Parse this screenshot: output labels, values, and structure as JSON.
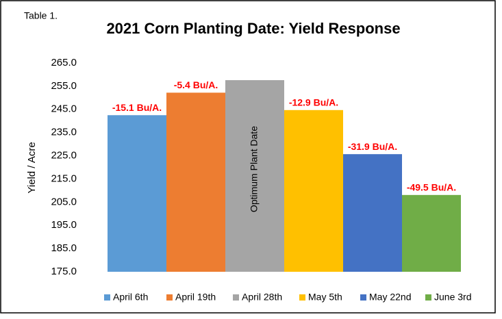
{
  "chart_data": {
    "type": "bar",
    "caption": "Table 1.",
    "title": "2021 Corn Planting Date: Yield Response",
    "y_label": "Yield / Acre",
    "series": [
      {
        "name": "April 6th",
        "color": "#5b9bd5",
        "values": [
          242.5
        ]
      },
      {
        "name": "April 19th",
        "color": "#ed7d31",
        "values": [
          252.2
        ]
      },
      {
        "name": "April 28th",
        "color": "#a5a5a5",
        "values": [
          257.6
        ]
      },
      {
        "name": "May 5th",
        "color": "#ffc000",
        "values": [
          244.7
        ]
      },
      {
        "name": "May 22nd",
        "color": "#4472c4",
        "values": [
          225.7
        ]
      },
      {
        "name": "June 3rd",
        "color": "#70ad47",
        "values": [
          208.1
        ]
      }
    ],
    "bar_labels": [
      "-15.1 Bu/A.",
      "-5.4 Bu/A.",
      null,
      "-12.9 Bu/A.",
      "-31.9 Bu/A.",
      "-49.5 Bu/A."
    ],
    "optimum_label": "Optimum Plant Date",
    "ylim": [
      175,
      265
    ],
    "yticks": [
      {
        "value": 175,
        "label": "175.0"
      },
      {
        "value": 185,
        "label": "185.0"
      },
      {
        "value": 195,
        "label": "195.0"
      },
      {
        "value": 205,
        "label": "205.0"
      },
      {
        "value": 215,
        "label": "215.0"
      },
      {
        "value": 225,
        "label": "225.0"
      },
      {
        "value": 235,
        "label": "235.0"
      },
      {
        "value": 245,
        "label": "245.0"
      },
      {
        "value": 255,
        "label": "255.0"
      },
      {
        "value": 265,
        "label": "265.0"
      }
    ],
    "legend": "bottom"
  }
}
